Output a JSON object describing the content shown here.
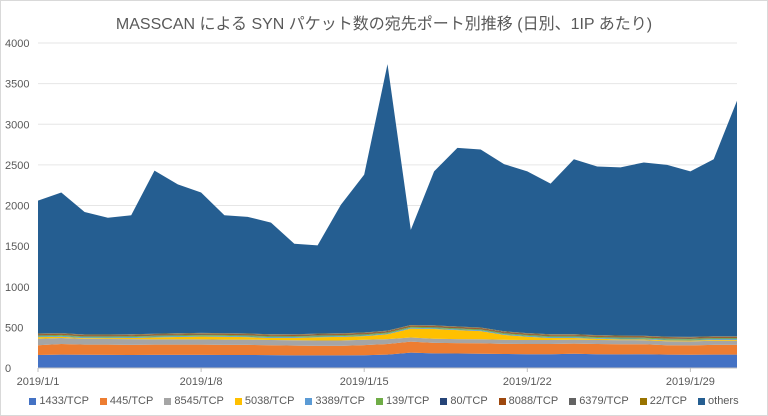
{
  "chart_data": {
    "type": "area",
    "stacked": true,
    "title": "MASSCAN による SYN パケット数の宛先ポート別推移 (日別、1IP あたり)",
    "xlabel": "",
    "ylabel": "",
    "ylim": [
      0,
      4000
    ],
    "yticks": [
      0,
      500,
      1000,
      1500,
      2000,
      2500,
      3000,
      3500,
      4000
    ],
    "x": [
      "2019/1/1",
      "2019/1/2",
      "2019/1/3",
      "2019/1/4",
      "2019/1/5",
      "2019/1/6",
      "2019/1/7",
      "2019/1/8",
      "2019/1/9",
      "2019/1/10",
      "2019/1/11",
      "2019/1/12",
      "2019/1/13",
      "2019/1/14",
      "2019/1/15",
      "2019/1/16",
      "2019/1/17",
      "2019/1/18",
      "2019/1/19",
      "2019/1/20",
      "2019/1/21",
      "2019/1/22",
      "2019/1/23",
      "2019/1/24",
      "2019/1/25",
      "2019/1/26",
      "2019/1/27",
      "2019/1/28",
      "2019/1/29",
      "2019/1/30",
      "2019/1/31"
    ],
    "xtick_labels": [
      "2019/1/1",
      "2019/1/8",
      "2019/1/15",
      "2019/1/22",
      "2019/1/29"
    ],
    "grid": true,
    "legend": "bottom",
    "series": [
      {
        "name": "1433/TCP",
        "color": "#4472C4",
        "values": [
          160,
          165,
          163,
          162,
          160,
          162,
          162,
          162,
          160,
          160,
          158,
          156,
          155,
          155,
          157,
          165,
          190,
          180,
          178,
          176,
          172,
          170,
          170,
          175,
          170,
          168,
          170,
          165,
          163,
          165,
          165
        ]
      },
      {
        "name": "445/TCP",
        "color": "#ED7D31",
        "values": [
          120,
          130,
          125,
          125,
          125,
          125,
          125,
          125,
          125,
          125,
          122,
          120,
          118,
          118,
          125,
          130,
          135,
          130,
          128,
          128,
          125,
          125,
          125,
          125,
          125,
          125,
          122,
          115,
          115,
          120,
          120
        ]
      },
      {
        "name": "8545/TCP",
        "color": "#A5A5A5",
        "values": [
          80,
          75,
          70,
          70,
          70,
          65,
          65,
          65,
          65,
          65,
          65,
          65,
          65,
          65,
          65,
          60,
          50,
          50,
          50,
          50,
          50,
          50,
          50,
          50,
          50,
          50,
          50,
          50,
          50,
          50,
          50
        ]
      },
      {
        "name": "5038/TCP",
        "color": "#FFC000",
        "values": [
          20,
          15,
          10,
          10,
          15,
          25,
          30,
          35,
          35,
          30,
          25,
          30,
          40,
          45,
          45,
          60,
          110,
          120,
          110,
          100,
          60,
          40,
          25,
          20,
          15,
          10,
          10,
          10,
          10,
          10,
          10
        ]
      },
      {
        "name": "3389/TCP",
        "color": "#5B9BD5",
        "values": [
          10,
          10,
          10,
          10,
          10,
          10,
          10,
          10,
          10,
          10,
          10,
          10,
          10,
          10,
          10,
          10,
          10,
          10,
          10,
          10,
          10,
          10,
          10,
          10,
          10,
          10,
          10,
          10,
          10,
          10,
          10
        ]
      },
      {
        "name": "139/TCP",
        "color": "#70AD47",
        "values": [
          12,
          12,
          12,
          12,
          12,
          12,
          12,
          12,
          12,
          12,
          12,
          12,
          12,
          12,
          12,
          12,
          12,
          12,
          12,
          12,
          12,
          12,
          12,
          12,
          12,
          12,
          12,
          12,
          12,
          12,
          12
        ]
      },
      {
        "name": "80/TCP",
        "color": "#264478",
        "values": [
          3,
          3,
          3,
          3,
          3,
          3,
          3,
          3,
          3,
          3,
          3,
          3,
          3,
          3,
          3,
          3,
          3,
          3,
          3,
          3,
          3,
          3,
          3,
          3,
          3,
          3,
          3,
          3,
          3,
          3,
          3
        ]
      },
      {
        "name": "8088/TCP",
        "color": "#9E480E",
        "values": [
          10,
          10,
          10,
          10,
          10,
          10,
          10,
          10,
          10,
          10,
          10,
          10,
          10,
          10,
          10,
          10,
          10,
          10,
          10,
          10,
          10,
          10,
          10,
          10,
          10,
          10,
          10,
          10,
          10,
          10,
          10
        ]
      },
      {
        "name": "6379/TCP",
        "color": "#636363",
        "values": [
          5,
          5,
          5,
          5,
          5,
          5,
          5,
          5,
          5,
          5,
          5,
          5,
          5,
          5,
          5,
          5,
          5,
          5,
          5,
          5,
          5,
          5,
          5,
          5,
          5,
          5,
          5,
          5,
          5,
          5,
          5
        ]
      },
      {
        "name": "22/TCP",
        "color": "#997300",
        "values": [
          5,
          5,
          5,
          5,
          5,
          5,
          5,
          5,
          5,
          5,
          5,
          5,
          5,
          5,
          5,
          5,
          5,
          5,
          5,
          5,
          5,
          5,
          5,
          5,
          5,
          5,
          5,
          5,
          5,
          5,
          5
        ]
      },
      {
        "name": "others",
        "color": "#255E91",
        "values": [
          1635,
          1730,
          1507,
          1438,
          1465,
          2008,
          1833,
          1728,
          1450,
          1435,
          1375,
          1114,
          1087,
          1582,
          1943,
          3280,
          1170,
          1895,
          2199,
          2191,
          2058,
          1990,
          1855,
          2155,
          2075,
          2072,
          2133,
          2115,
          2037,
          2180,
          2900
        ]
      }
    ]
  }
}
